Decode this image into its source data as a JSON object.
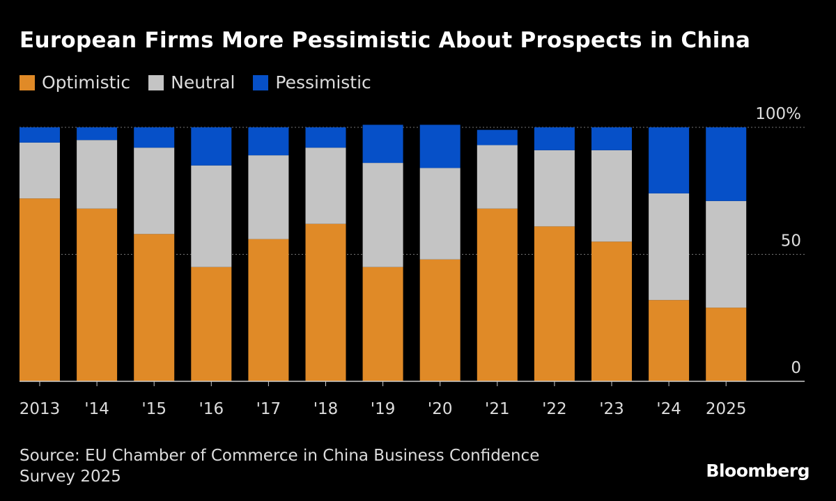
{
  "chart_data": {
    "type": "bar",
    "stacked": true,
    "title": "European Firms More Pessimistic About Prospects in China",
    "categories": [
      "2013",
      "'14",
      "'15",
      "'16",
      "'17",
      "'18",
      "'19",
      "'20",
      "'21",
      "'22",
      "'23",
      "'24",
      "2025"
    ],
    "series": [
      {
        "name": "Optimistic",
        "color": "#e08a27",
        "values": [
          72,
          68,
          58,
          45,
          56,
          62,
          45,
          48,
          68,
          61,
          55,
          32,
          29
        ]
      },
      {
        "name": "Neutral",
        "color": "#c4c4c4",
        "values": [
          22,
          27,
          34,
          40,
          33,
          30,
          41,
          36,
          25,
          30,
          36,
          42,
          42
        ]
      },
      {
        "name": "Pessimistic",
        "color": "#0650c8",
        "values": [
          6,
          5,
          8,
          15,
          11,
          8,
          15,
          17,
          6,
          9,
          9,
          26,
          29
        ]
      }
    ],
    "yticks": [
      {
        "value": 0,
        "label": "0"
      },
      {
        "value": 50,
        "label": "50"
      },
      {
        "value": 100,
        "label": "100%"
      }
    ],
    "ylim": [
      0,
      100
    ],
    "grid": true,
    "legend_position": "top-left"
  },
  "source": "Source: EU Chamber of Commerce in China Business Confidence Survey 2025",
  "logo": "Bloomberg"
}
